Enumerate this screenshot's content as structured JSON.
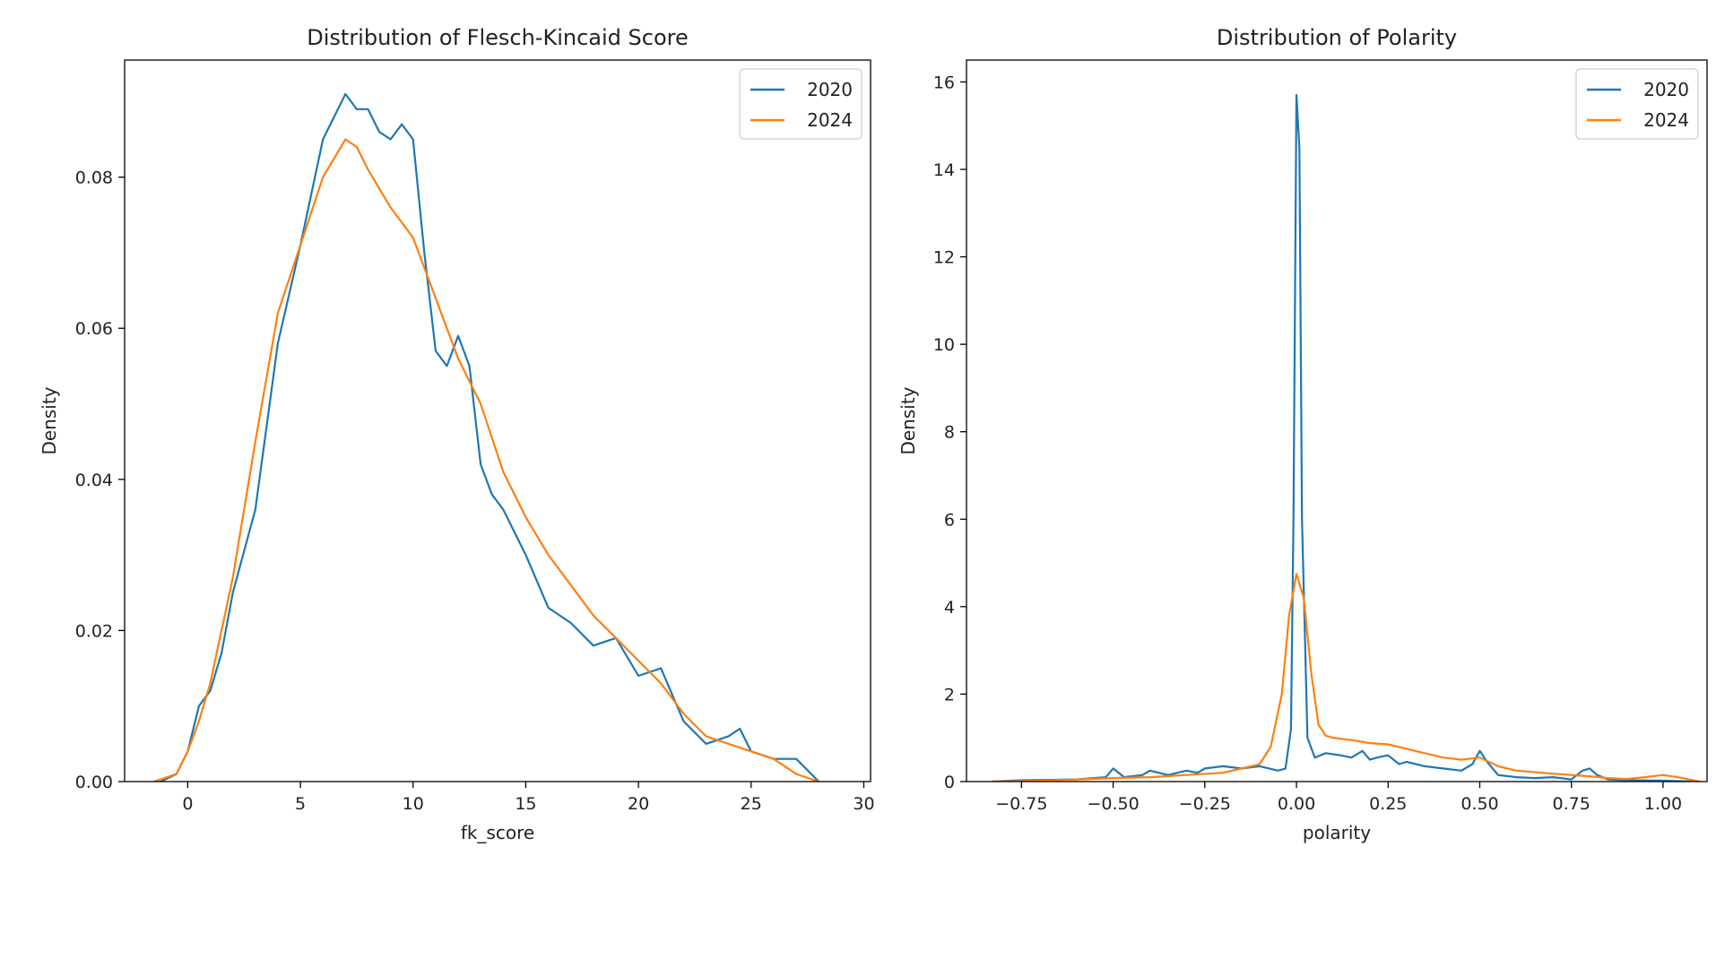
{
  "chart_data": [
    {
      "type": "line",
      "title": "Distribution of Flesch-Kincaid Score",
      "xlabel": "fk_score",
      "ylabel": "Density",
      "xlim": [
        -2.8,
        30.3
      ],
      "ylim": [
        0,
        0.0955
      ],
      "xticks": [
        0,
        5,
        10,
        15,
        20,
        25,
        30
      ],
      "xtick_labels": [
        "0",
        "5",
        "10",
        "15",
        "20",
        "25",
        "30"
      ],
      "yticks": [
        0.0,
        0.02,
        0.04,
        0.06,
        0.08
      ],
      "ytick_labels": [
        "0.00",
        "0.02",
        "0.04",
        "0.06",
        "0.08"
      ],
      "legend": "top-right",
      "grid": false,
      "series": [
        {
          "name": "2020",
          "color": "#1f77b4",
          "x": [
            -1.2,
            -0.5,
            0,
            0.5,
            1,
            1.5,
            2,
            3,
            4,
            5,
            6,
            7,
            7.5,
            8,
            8.5,
            9,
            9.5,
            10,
            10.5,
            11,
            11.5,
            12,
            12.5,
            13,
            13.5,
            14,
            15,
            16,
            17,
            18,
            19,
            20,
            21,
            22,
            23,
            24,
            24.5,
            25,
            26,
            27,
            28
          ],
          "values": [
            0.0,
            0.001,
            0.004,
            0.01,
            0.012,
            0.017,
            0.025,
            0.036,
            0.058,
            0.071,
            0.085,
            0.091,
            0.089,
            0.089,
            0.086,
            0.085,
            0.087,
            0.085,
            0.07,
            0.057,
            0.055,
            0.059,
            0.055,
            0.042,
            0.038,
            0.036,
            0.03,
            0.023,
            0.021,
            0.018,
            0.019,
            0.014,
            0.015,
            0.008,
            0.005,
            0.006,
            0.007,
            0.004,
            0.003,
            0.003,
            0.0
          ]
        },
        {
          "name": "2024",
          "color": "#ff7f0e",
          "x": [
            -1.5,
            -0.5,
            0,
            0.5,
            1,
            2,
            3,
            4,
            5,
            6,
            7,
            7.5,
            8,
            9,
            10,
            11,
            12,
            13,
            14,
            15,
            16,
            17,
            18,
            19,
            20,
            21,
            22,
            23,
            24,
            25,
            26,
            27,
            28
          ],
          "values": [
            0.0,
            0.001,
            0.004,
            0.008,
            0.013,
            0.027,
            0.045,
            0.062,
            0.071,
            0.08,
            0.085,
            0.084,
            0.081,
            0.076,
            0.072,
            0.064,
            0.056,
            0.05,
            0.041,
            0.035,
            0.03,
            0.026,
            0.022,
            0.019,
            0.016,
            0.013,
            0.009,
            0.006,
            0.005,
            0.004,
            0.003,
            0.001,
            0.0
          ]
        }
      ]
    },
    {
      "type": "line",
      "title": "Distribution of Polarity",
      "xlabel": "polarity",
      "ylabel": "Density",
      "xlim": [
        -0.9,
        1.12
      ],
      "ylim": [
        0,
        16.5
      ],
      "xticks": [
        -0.75,
        -0.5,
        -0.25,
        0.0,
        0.25,
        0.5,
        0.75,
        1.0
      ],
      "xtick_labels": [
        "−0.75",
        "−0.50",
        "−0.25",
        "0.00",
        "0.25",
        "0.50",
        "0.75",
        "1.00"
      ],
      "yticks": [
        0,
        2,
        4,
        6,
        8,
        10,
        12,
        14,
        16
      ],
      "ytick_labels": [
        "0",
        "2",
        "4",
        "6",
        "8",
        "10",
        "12",
        "14",
        "16"
      ],
      "legend": "top-right",
      "grid": false,
      "series": [
        {
          "name": "2020",
          "color": "#1f77b4",
          "x": [
            -0.83,
            -0.75,
            -0.6,
            -0.52,
            -0.5,
            -0.47,
            -0.42,
            -0.4,
            -0.35,
            -0.3,
            -0.27,
            -0.25,
            -0.2,
            -0.15,
            -0.1,
            -0.05,
            -0.03,
            -0.015,
            -0.008,
            0.0,
            0.008,
            0.015,
            0.03,
            0.05,
            0.08,
            0.12,
            0.15,
            0.18,
            0.2,
            0.22,
            0.25,
            0.28,
            0.3,
            0.35,
            0.4,
            0.45,
            0.48,
            0.5,
            0.52,
            0.55,
            0.6,
            0.65,
            0.7,
            0.75,
            0.78,
            0.8,
            0.82,
            0.85,
            0.9,
            1.0,
            1.08
          ],
          "values": [
            0.0,
            0.03,
            0.05,
            0.1,
            0.3,
            0.1,
            0.15,
            0.25,
            0.15,
            0.25,
            0.2,
            0.3,
            0.35,
            0.3,
            0.35,
            0.25,
            0.3,
            1.2,
            6.0,
            15.7,
            14.5,
            6.0,
            1.0,
            0.55,
            0.65,
            0.6,
            0.55,
            0.7,
            0.5,
            0.55,
            0.6,
            0.4,
            0.45,
            0.35,
            0.3,
            0.25,
            0.4,
            0.7,
            0.45,
            0.15,
            0.1,
            0.08,
            0.1,
            0.05,
            0.25,
            0.3,
            0.15,
            0.05,
            0.03,
            0.02,
            0.0
          ]
        },
        {
          "name": "2024",
          "color": "#ff7f0e",
          "x": [
            -0.83,
            -0.7,
            -0.6,
            -0.5,
            -0.4,
            -0.3,
            -0.2,
            -0.15,
            -0.1,
            -0.07,
            -0.04,
            -0.02,
            0.0,
            0.02,
            0.04,
            0.06,
            0.08,
            0.1,
            0.15,
            0.2,
            0.25,
            0.3,
            0.35,
            0.4,
            0.45,
            0.5,
            0.55,
            0.6,
            0.7,
            0.8,
            0.85,
            0.9,
            0.95,
            1.0,
            1.04,
            1.1
          ],
          "values": [
            0.0,
            0.02,
            0.05,
            0.08,
            0.1,
            0.15,
            0.2,
            0.3,
            0.4,
            0.8,
            2.0,
            3.8,
            4.75,
            4.2,
            2.5,
            1.3,
            1.05,
            1.0,
            0.95,
            0.88,
            0.85,
            0.75,
            0.65,
            0.55,
            0.5,
            0.55,
            0.35,
            0.25,
            0.18,
            0.12,
            0.08,
            0.06,
            0.1,
            0.15,
            0.1,
            0.0
          ]
        }
      ]
    }
  ]
}
